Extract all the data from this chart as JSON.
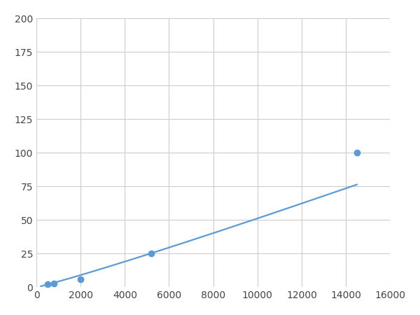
{
  "x": [
    200,
    500,
    800,
    2000,
    5200,
    14500
  ],
  "y": [
    1,
    2,
    3,
    6,
    25,
    100
  ],
  "marker_x": [
    500,
    800,
    2000,
    5200,
    14500
  ],
  "marker_y": [
    2,
    3,
    6,
    25,
    100
  ],
  "line_color": "#5b9bd5",
  "marker_color": "#5b9bd5",
  "marker_size": 6,
  "marker_style": "o",
  "line_width": 1.6,
  "xlim": [
    0,
    16000
  ],
  "ylim": [
    0,
    200
  ],
  "xticks": [
    0,
    2000,
    4000,
    6000,
    8000,
    10000,
    12000,
    14000,
    16000
  ],
  "yticks": [
    0,
    25,
    50,
    75,
    100,
    125,
    150,
    175,
    200
  ],
  "grid_color": "#cccccc",
  "background_color": "#ffffff",
  "figsize": [
    6.0,
    4.5
  ],
  "dpi": 100
}
